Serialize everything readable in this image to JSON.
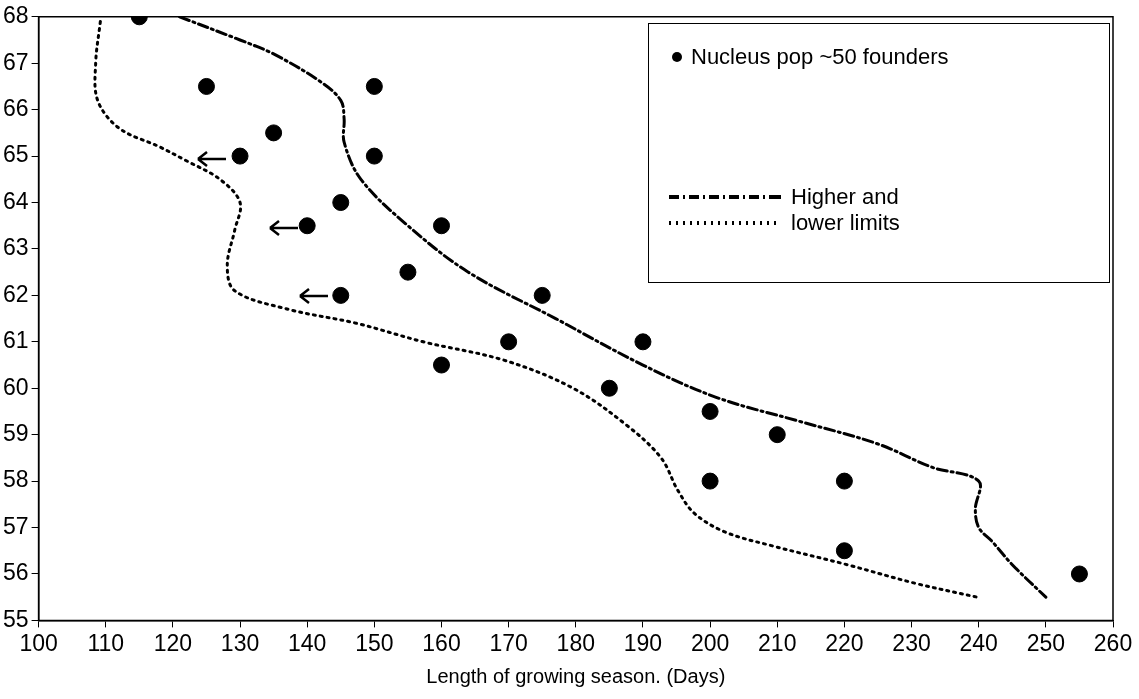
{
  "chart_data": {
    "type": "scatter",
    "xlabel": "Length of growing season. (Days)",
    "xlim": [
      100,
      260
    ],
    "xticks": [
      100,
      110,
      120,
      130,
      140,
      150,
      160,
      170,
      180,
      190,
      200,
      210,
      220,
      230,
      240,
      250,
      260
    ],
    "ylim": [
      55,
      68
    ],
    "yticks": [
      55,
      56,
      57,
      58,
      59,
      60,
      61,
      62,
      63,
      64,
      65,
      66,
      67,
      68
    ],
    "grid": false,
    "legend": "top right",
    "marker": "circle",
    "series": [
      {
        "name": "Nucleus pop ~50 founders",
        "color": "#000000",
        "x": [
          115,
          125,
          135,
          130,
          150,
          150,
          145,
          140,
          160,
          155,
          145,
          175,
          170,
          190,
          160,
          185,
          200,
          210,
          200,
          220,
          220,
          255
        ],
        "values": [
          68,
          66.5,
          65.5,
          65,
          66.5,
          65,
          64,
          63.5,
          63.5,
          62.5,
          62,
          62,
          61,
          61,
          60.5,
          60,
          59.5,
          59,
          58,
          58,
          56.5,
          56
        ]
      },
      {
        "name": "Higher and lower limits",
        "color": "#000000",
        "type": "line",
        "line_style": "dashed",
        "marker": "none",
        "x": [
          121,
          130,
          135,
          142,
          145,
          145.5,
          145.5,
          148,
          155,
          164,
          177,
          190,
          201,
          213,
          225,
          233,
          240,
          239.5,
          240,
          242,
          245,
          250
        ],
        "values": [
          68,
          67.5,
          67.2,
          66.6,
          66.2,
          65.8,
          65.3,
          64.5,
          63.5,
          62.5,
          61.5,
          60.5,
          59.8,
          59.3,
          58.8,
          58.3,
          58,
          57.4,
          57,
          56.7,
          56.2,
          55.5
        ]
      },
      {
        "color": "#000000",
        "type": "line",
        "line_style": "dotted",
        "marker": "none",
        "x": [
          109.2,
          108.5,
          108.8,
          112,
          118,
          122,
          127,
          130,
          129.2,
          128.1,
          129.2,
          137.2,
          147.3,
          157.3,
          169.4,
          179.6,
          187.6,
          192.7,
          195.2,
          197.7,
          202.3,
          209.4,
          220.4,
          230.5,
          239.8
        ],
        "values": [
          67.9,
          67,
          66.2,
          65.6,
          65.2,
          64.9,
          64.5,
          64,
          63.4,
          62.65,
          62.1,
          61.7,
          61.4,
          61,
          60.6,
          60,
          59.2,
          58.5,
          57.8,
          57.3,
          56.9,
          56.6,
          56.2,
          55.8,
          55.5
        ]
      }
    ]
  }
}
